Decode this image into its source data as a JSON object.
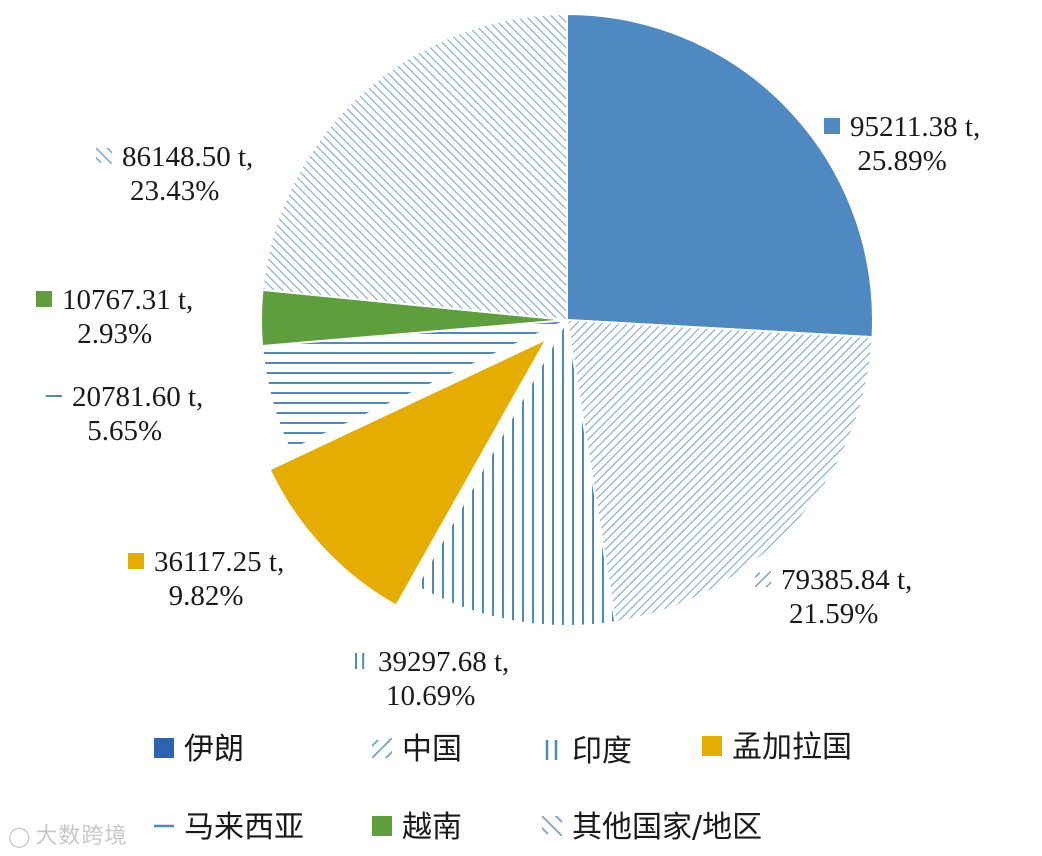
{
  "colors": {
    "blue": "#4f89c1",
    "hatch": "#7fa8d0",
    "gold": "#e5ad00",
    "green": "#5e9e3c",
    "legend_blue": "#2f62b0"
  },
  "chart_data": {
    "type": "pie",
    "title": "",
    "slices": [
      {
        "name": "伊朗",
        "value": 95211.38,
        "value_label": "95211.38 t,",
        "percent": 25.89,
        "percent_label": "25.89%",
        "pattern": "solid-blue"
      },
      {
        "name": "中国",
        "value": 79385.84,
        "value_label": "79385.84 t,",
        "percent": 21.59,
        "percent_label": "21.59%",
        "pattern": "diagonal"
      },
      {
        "name": "印度",
        "value": 39297.68,
        "value_label": "39297.68 t,",
        "percent": 10.69,
        "percent_label": "10.69%",
        "pattern": "vertical"
      },
      {
        "name": "孟加拉国",
        "value": 36117.25,
        "value_label": "36117.25 t,",
        "percent": 9.82,
        "percent_label": "9.82%",
        "pattern": "solid-gold"
      },
      {
        "name": "马来西亚",
        "value": 20781.6,
        "value_label": "20781.60 t,",
        "percent": 5.65,
        "percent_label": "5.65%",
        "pattern": "horizontal"
      },
      {
        "name": "越南",
        "value": 10767.31,
        "value_label": "10767.31 t,",
        "percent": 2.93,
        "percent_label": "2.93%",
        "pattern": "solid-green"
      },
      {
        "name": "其他国家/地区",
        "value": 86148.5,
        "value_label": "86148.50 t,",
        "percent": 23.43,
        "percent_label": "23.43%",
        "pattern": "diagonal-back"
      }
    ],
    "legend": {
      "placement": "bottom",
      "items": [
        "伊朗",
        "中国",
        "印度",
        "孟加拉国",
        "马来西亚",
        "越南",
        "其他国家/地区"
      ]
    }
  },
  "watermark": {
    "text": "大数跨境"
  }
}
